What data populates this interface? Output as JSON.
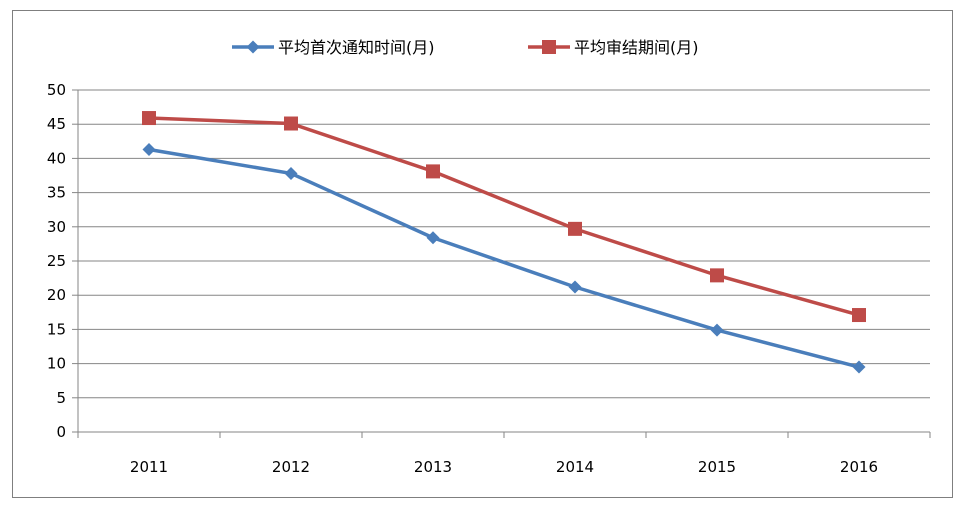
{
  "chart_data": {
    "type": "line",
    "title": "",
    "xlabel": "",
    "ylabel": "",
    "categories": [
      "2011",
      "2012",
      "2013",
      "2014",
      "2015",
      "2016"
    ],
    "ylim": [
      0,
      50
    ],
    "yticks": [
      "0",
      "5",
      "10",
      "15",
      "20",
      "25",
      "30",
      "35",
      "40",
      "45",
      "50"
    ],
    "grid": true,
    "legend_position": "top",
    "series": [
      {
        "name": "平均首次通知时间(月)",
        "values": [
          41.3,
          37.8,
          28.4,
          21.2,
          14.9,
          9.5
        ],
        "color": "#4a7ebb",
        "marker": "diamond"
      },
      {
        "name": "平均审结期间(月)",
        "values": [
          45.9,
          45.1,
          38.1,
          29.7,
          22.9,
          17.1
        ],
        "color": "#be4b48",
        "marker": "square"
      }
    ]
  }
}
